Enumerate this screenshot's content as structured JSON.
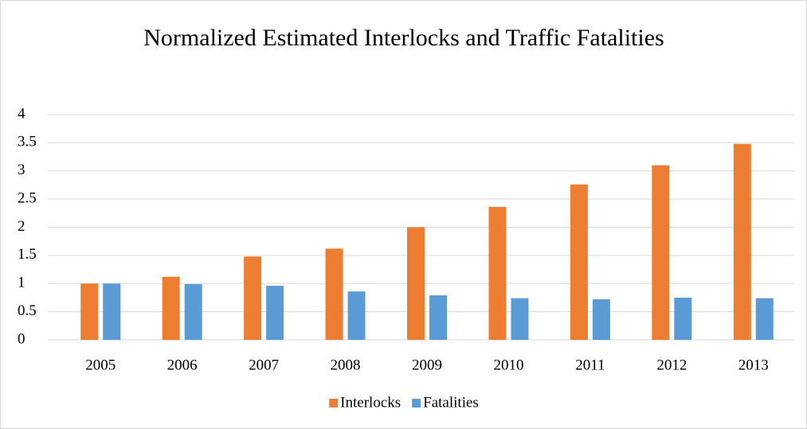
{
  "chart_data": {
    "type": "bar",
    "title": "Normalized Estimated Interlocks and Traffic Fatalities",
    "categories": [
      "2005",
      "2006",
      "2007",
      "2008",
      "2009",
      "2010",
      "2011",
      "2012",
      "2013"
    ],
    "series": [
      {
        "name": "Interlocks",
        "color": "#ed7d31",
        "values": [
          1.0,
          1.12,
          1.48,
          1.62,
          2.0,
          2.36,
          2.76,
          3.1,
          3.48
        ]
      },
      {
        "name": "Fatalities",
        "color": "#5b9bd5",
        "values": [
          1.0,
          0.99,
          0.96,
          0.86,
          0.79,
          0.74,
          0.72,
          0.75,
          0.74
        ]
      }
    ],
    "ylim": [
      0,
      4
    ],
    "yticks": [
      0,
      0.5,
      1,
      1.5,
      2,
      2.5,
      3,
      3.5,
      4
    ],
    "grid": true,
    "legend": "bottom"
  }
}
